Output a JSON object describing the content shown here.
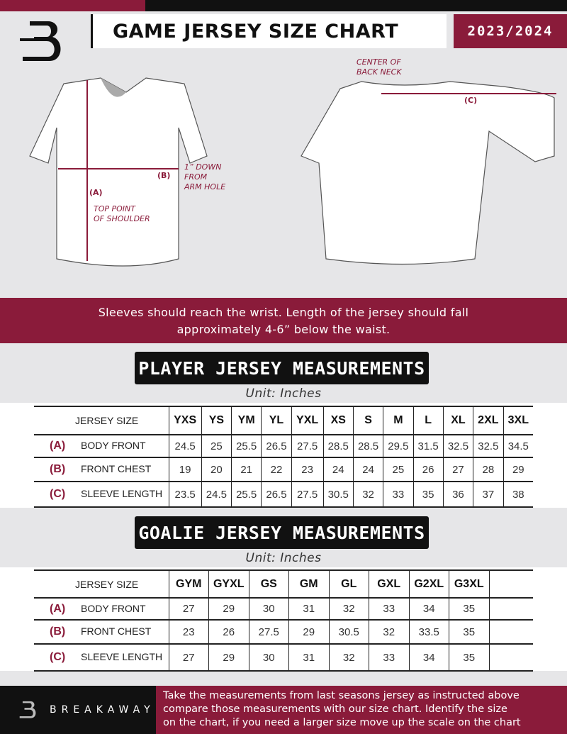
{
  "header": {
    "title": "GAME JERSEY SIZE CHART",
    "season": "2023/2024",
    "brand_colors": {
      "maroon": "#8a1b3a",
      "black": "#111111"
    }
  },
  "diagram": {
    "front_labels": {
      "a": "(A)",
      "a_note": [
        "TOP POINT",
        "OF SHOULDER"
      ],
      "b": "(B)",
      "b_note": [
        "1” DOWN",
        "FROM",
        "ARM HOLE"
      ]
    },
    "back_labels": {
      "c": "(C)",
      "c_note": [
        "CENTER OF",
        "BACK NECK"
      ]
    }
  },
  "instruction_band": [
    "Sleeves should reach the wrist. Length of the jersey should fall",
    "approximately 4-6” below the waist."
  ],
  "player": {
    "title": "PLAYER JERSEY MEASUREMENTS",
    "unit": "Unit: Inches",
    "size_header": "JERSEY SIZE",
    "sizes": [
      "YXS",
      "YS",
      "YM",
      "YL",
      "YXL",
      "XS",
      "S",
      "M",
      "L",
      "XL",
      "2XL",
      "3XL"
    ],
    "rows": [
      {
        "letter": "(A)",
        "label": "BODY FRONT",
        "values": [
          "24.5",
          "25",
          "25.5",
          "26.5",
          "27.5",
          "28.5",
          "28.5",
          "29.5",
          "31.5",
          "32.5",
          "32.5",
          "34.5"
        ]
      },
      {
        "letter": "(B)",
        "label": "FRONT CHEST",
        "values": [
          "19",
          "20",
          "21",
          "22",
          "23",
          "24",
          "24",
          "25",
          "26",
          "27",
          "28",
          "29"
        ]
      },
      {
        "letter": "(C)",
        "label": "SLEEVE LENGTH",
        "values": [
          "23.5",
          "24.5",
          "25.5",
          "26.5",
          "27.5",
          "30.5",
          "32",
          "33",
          "35",
          "36",
          "37",
          "38"
        ]
      }
    ]
  },
  "goalie": {
    "title": "GOALIE JERSEY MEASUREMENTS",
    "unit": "Unit: Inches",
    "size_header": "JERSEY SIZE",
    "sizes": [
      "GYM",
      "GYXL",
      "GS",
      "GM",
      "GL",
      "GXL",
      "G2XL",
      "G3XL",
      ""
    ],
    "rows": [
      {
        "letter": "(A)",
        "label": "BODY FRONT",
        "values": [
          "27",
          "29",
          "30",
          "31",
          "32",
          "33",
          "34",
          "35",
          ""
        ]
      },
      {
        "letter": "(B)",
        "label": "FRONT CHEST",
        "values": [
          "23",
          "26",
          "27.5",
          "29",
          "30.5",
          "32",
          "33.5",
          "35",
          ""
        ]
      },
      {
        "letter": "(C)",
        "label": "SLEEVE LENGTH",
        "values": [
          "27",
          "29",
          "30",
          "31",
          "32",
          "33",
          "34",
          "35",
          ""
        ]
      }
    ]
  },
  "footer": {
    "brand": "BREAKAWAY",
    "text": [
      "Take the measurements from last seasons jersey as instructed above",
      "compare those measurements  with our size chart. Identify the size",
      "on the chart, if you need a larger size move up the scale on the chart"
    ]
  }
}
